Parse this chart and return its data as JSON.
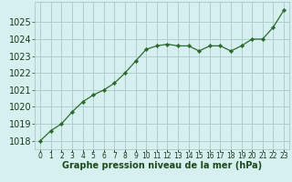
{
  "x": [
    0,
    1,
    2,
    3,
    4,
    5,
    6,
    7,
    8,
    9,
    10,
    11,
    12,
    13,
    14,
    15,
    16,
    17,
    18,
    19,
    20,
    21,
    22,
    23
  ],
  "y": [
    1018.0,
    1018.6,
    1019.0,
    1019.7,
    1020.3,
    1020.7,
    1021.0,
    1021.4,
    1022.0,
    1022.7,
    1023.4,
    1023.6,
    1023.7,
    1023.6,
    1023.6,
    1023.3,
    1023.6,
    1023.6,
    1023.3,
    1023.6,
    1024.0,
    1024.0,
    1024.7,
    1025.7
  ],
  "line_color": "#2d6a2d",
  "marker_color": "#2d6a2d",
  "bg_color": "#d6f0f0",
  "grid_color": "#a8c8c8",
  "xlabel": "Graphe pression niveau de la mer (hPa)",
  "xlabel_color": "#1a4a1a",
  "ylabel_ticks": [
    1018,
    1019,
    1020,
    1021,
    1022,
    1023,
    1024,
    1025
  ],
  "xlim": [
    -0.5,
    23.5
  ],
  "ylim": [
    1017.5,
    1026.2
  ],
  "tick_label_color": "#1a3a1a",
  "font_size_xlabel": 7,
  "font_size_yticks": 7,
  "font_size_xticks": 5.5
}
